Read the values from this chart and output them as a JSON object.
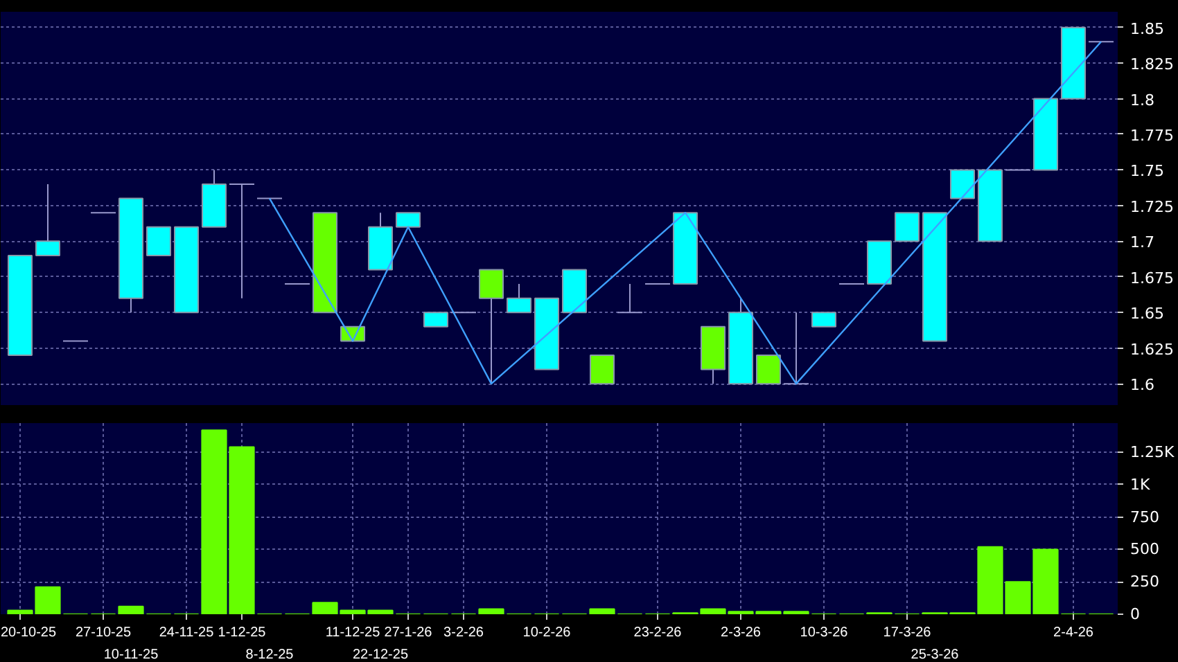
{
  "chart_data": [
    {
      "type": "candlestick",
      "categories": [
        null,
        null,
        null,
        null,
        null,
        null,
        null,
        null,
        null,
        null,
        null,
        null,
        null,
        null,
        null,
        null,
        null,
        null,
        null,
        null,
        null,
        null,
        null,
        null,
        null,
        null,
        null,
        null,
        null,
        null,
        null,
        null,
        null,
        null,
        null,
        null,
        null,
        null,
        null,
        null
      ],
      "ohlc": [
        [
          1.62,
          1.69,
          1.62,
          1.69
        ],
        [
          1.69,
          1.74,
          1.69,
          1.7
        ],
        [
          1.63,
          1.63,
          1.63,
          1.63
        ],
        [
          1.72,
          1.72,
          1.72,
          1.72
        ],
        [
          1.66,
          1.73,
          1.65,
          1.73
        ],
        [
          1.69,
          1.71,
          1.69,
          1.71
        ],
        [
          1.65,
          1.71,
          1.65,
          1.71
        ],
        [
          1.71,
          1.75,
          1.71,
          1.74
        ],
        [
          1.74,
          1.74,
          1.66,
          1.74
        ],
        [
          1.73,
          1.73,
          1.73,
          1.73
        ],
        [
          1.67,
          1.67,
          1.67,
          1.67
        ],
        [
          1.72,
          1.72,
          1.65,
          1.65
        ],
        [
          1.64,
          1.64,
          1.63,
          1.63
        ],
        [
          1.68,
          1.72,
          1.68,
          1.71
        ],
        [
          1.71,
          1.72,
          1.71,
          1.72
        ],
        [
          1.64,
          1.65,
          1.64,
          1.65
        ],
        [
          1.65,
          1.65,
          1.65,
          1.65
        ],
        [
          1.68,
          1.68,
          1.6,
          1.66
        ],
        [
          1.65,
          1.67,
          1.65,
          1.66
        ],
        [
          1.61,
          1.66,
          1.61,
          1.66
        ],
        [
          1.65,
          1.68,
          1.65,
          1.68
        ],
        [
          1.62,
          1.62,
          1.6,
          1.6
        ],
        [
          1.65,
          1.67,
          1.65,
          1.65
        ],
        [
          1.67,
          1.67,
          1.67,
          1.67
        ],
        [
          1.67,
          1.72,
          1.67,
          1.72
        ],
        [
          1.64,
          1.64,
          1.6,
          1.61
        ],
        [
          1.6,
          1.66,
          1.6,
          1.65
        ],
        [
          1.62,
          1.62,
          1.6,
          1.6
        ],
        [
          1.6,
          1.65,
          1.6,
          1.6
        ],
        [
          1.64,
          1.65,
          1.64,
          1.65
        ],
        [
          1.67,
          1.67,
          1.67,
          1.67
        ],
        [
          1.67,
          1.7,
          1.67,
          1.7
        ],
        [
          1.7,
          1.72,
          1.7,
          1.72
        ],
        [
          1.63,
          1.72,
          1.63,
          1.72
        ],
        [
          1.73,
          1.75,
          1.73,
          1.75
        ],
        [
          1.7,
          1.75,
          1.7,
          1.75
        ],
        [
          1.75,
          1.75,
          1.75,
          1.75
        ],
        [
          1.75,
          1.8,
          1.75,
          1.8
        ],
        [
          1.8,
          1.85,
          1.8,
          1.85
        ],
        [
          1.84,
          1.84,
          1.84,
          1.84
        ]
      ],
      "colors": [
        "#00ffff",
        "#00ffff",
        "#9999cc",
        "#9999cc",
        "#00ffff",
        "#00ffff",
        "#00ffff",
        "#00ffff",
        "#9999cc",
        "#9999cc",
        "#9999cc",
        "#66ff00",
        "#66ff00",
        "#00ffff",
        "#00ffff",
        "#00ffff",
        "#9999cc",
        "#66ff00",
        "#00ffff",
        "#00ffff",
        "#00ffff",
        "#66ff00",
        "#9999cc",
        "#9999cc",
        "#00ffff",
        "#66ff00",
        "#00ffff",
        "#66ff00",
        "#9999cc",
        "#00ffff",
        "#9999cc",
        "#00ffff",
        "#00ffff",
        "#00ffff",
        "#00ffff",
        "#00ffff",
        "#9999cc",
        "#00ffff",
        "#00ffff",
        "#9999cc"
      ],
      "series": [
        {
          "type": "line",
          "color": "#3fa0ff",
          "values": [
            null,
            null,
            null,
            null,
            null,
            null,
            null,
            null,
            null,
            1.73,
            null,
            null,
            1.63,
            null,
            1.71,
            null,
            null,
            1.6,
            null,
            null,
            null,
            null,
            null,
            null,
            1.72,
            null,
            null,
            null,
            1.6,
            null,
            null,
            null,
            null,
            null,
            null,
            null,
            null,
            null,
            null,
            1.84
          ]
        }
      ],
      "ylim": [
        1.585,
        1.861
      ],
      "yticks": [
        1.6,
        1.625,
        1.65,
        1.675,
        1.7,
        1.725,
        1.75,
        1.775,
        1.8,
        1.825,
        1.85
      ],
      "grid": true,
      "tick_labels": "y"
    },
    {
      "type": "bar",
      "categories": [
        "20-10-25",
        null,
        null,
        "27-10-25",
        "10-11-25",
        null,
        "24-11-25",
        null,
        "1-12-25",
        "8-12-25",
        null,
        null,
        "11-12-25",
        "22-12-25",
        "27-1-26",
        null,
        "3-2-26",
        null,
        null,
        "10-2-26",
        null,
        null,
        null,
        "23-2-26",
        null,
        null,
        "2-3-26",
        null,
        null,
        "10-3-26",
        null,
        null,
        "17-3-26",
        "25-3-26",
        null,
        null,
        null,
        null,
        "2-4-26",
        null
      ],
      "values": [
        30,
        210,
        0,
        0,
        60,
        0,
        0,
        1420,
        1290,
        0,
        0,
        90,
        30,
        30,
        0,
        0,
        0,
        40,
        0,
        0,
        0,
        40,
        0,
        0,
        10,
        40,
        20,
        20,
        20,
        0,
        0,
        10,
        0,
        10,
        10,
        520,
        250,
        500,
        0,
        0
      ],
      "color": "#66ff00",
      "ylim": [
        0,
        1475
      ],
      "yticks": [
        0,
        250,
        500,
        750,
        {
          "value": 1000,
          "label": "1K"
        },
        {
          "value": 1250,
          "label": "1.25K"
        }
      ],
      "grid": true
    }
  ]
}
